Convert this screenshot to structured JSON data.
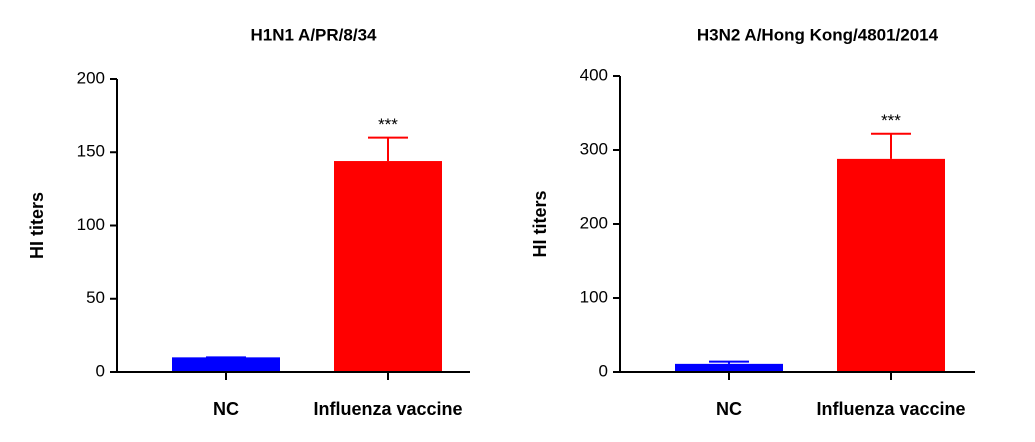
{
  "chart_data": [
    {
      "type": "bar",
      "title": "H1N1 A/PR/8/34",
      "y_label": "HI titers",
      "categories": [
        "NC",
        "Influenza vaccine"
      ],
      "values": [
        10,
        144
      ],
      "errors": [
        0,
        16
      ],
      "colors": [
        "#0000ff",
        "#ff0000"
      ],
      "annotations": [
        null,
        "***"
      ],
      "ylim": [
        0,
        200
      ],
      "yticks": [
        0,
        50,
        100,
        150,
        200
      ]
    },
    {
      "type": "bar",
      "title": "H3N2 A/Hong Kong/4801/2014",
      "y_label": "HI titers",
      "categories": [
        "NC",
        "Influenza vaccine"
      ],
      "values": [
        11,
        288
      ],
      "errors": [
        3,
        34
      ],
      "colors": [
        "#0000ff",
        "#ff0000"
      ],
      "annotations": [
        null,
        "***"
      ],
      "ylim": [
        0,
        400
      ],
      "yticks": [
        0,
        100,
        200,
        300,
        400
      ]
    }
  ]
}
